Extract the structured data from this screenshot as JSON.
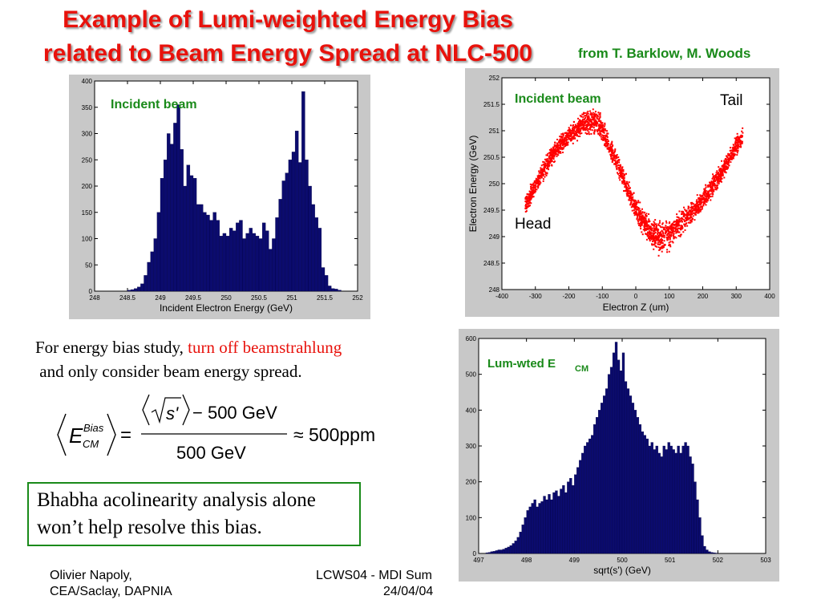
{
  "slide": {
    "title_line1": "Example of Lumi-weighted Energy Bias",
    "title_line2": "related to Beam Energy Spread at NLC-500",
    "credit": "from T. Barklow, M. Woods"
  },
  "text": {
    "line1_plain": "For energy bias study, ",
    "line1_red": "turn off beamstrahlung",
    "line2": " and only consider beam energy spread.",
    "box_line1": "Bhabha acolinearity analysis alone",
    "box_line2": "won’t help resolve this bias."
  },
  "formula": {
    "lhs_main": "E",
    "lhs_sup": "Bias",
    "lhs_sub": "CM",
    "numerator_s": "s'",
    "numerator_rest": "− 500 GeV",
    "denominator": "500 GeV",
    "result": "≈ 500ppm"
  },
  "footer": {
    "author_line1": "Olivier Napoly,",
    "author_line2": "CEA/Saclay, DAPNIA",
    "conf_line1": "LCWS04 - MDI Sum",
    "conf_line2": "24/04/04"
  },
  "chart_data": [
    {
      "type": "bar",
      "annotation": "Incident beam",
      "xlabel": "Incident Electron Energy (GeV)",
      "ylabel": "",
      "xlim": [
        248,
        252
      ],
      "ylim": [
        0,
        400
      ],
      "x_ticks": [
        "248",
        "248.5",
        "249",
        "249.5",
        "250",
        "250.5",
        "251",
        "251.5",
        "252"
      ],
      "y_ticks": [
        "0",
        "50",
        "100",
        "150",
        "200",
        "250",
        "300",
        "350",
        "400"
      ],
      "bin_start": 248.45,
      "bin_width": 0.05,
      "values": [
        0,
        2,
        3,
        5,
        8,
        14,
        30,
        55,
        75,
        100,
        150,
        215,
        250,
        300,
        280,
        320,
        355,
        270,
        200,
        240,
        220,
        215,
        165,
        165,
        150,
        145,
        135,
        150,
        135,
        105,
        110,
        105,
        120,
        115,
        130,
        135,
        100,
        110,
        120,
        110,
        105,
        100,
        130,
        115,
        80,
        100,
        140,
        175,
        210,
        225,
        250,
        265,
        305,
        245,
        380,
        250,
        200,
        165,
        140,
        120,
        45,
        30,
        10,
        5,
        4,
        2,
        0
      ]
    },
    {
      "type": "scatter",
      "annotation": "Incident beam",
      "labels": [
        "Tail",
        "Head"
      ],
      "xlabel": "Electron Z (um)",
      "ylabel": "Electron Energy (GeV)",
      "xlim": [
        -400,
        400
      ],
      "ylim": [
        248,
        252
      ],
      "x_ticks": [
        "-400",
        "-300",
        "-200",
        "-100",
        "0",
        "100",
        "200",
        "300",
        "400"
      ],
      "y_ticks": [
        "248",
        "248.5",
        "249",
        "249.5",
        "250",
        "250.5",
        "251",
        "251.5",
        "252"
      ],
      "color": "#ff0000",
      "centerline": [
        [
          -330,
          249.6
        ],
        [
          -300,
          249.95
        ],
        [
          -250,
          250.55
        ],
        [
          -200,
          250.9
        ],
        [
          -150,
          251.15
        ],
        [
          -120,
          251.18
        ],
        [
          -100,
          251.0
        ],
        [
          -50,
          250.3
        ],
        [
          0,
          249.5
        ],
        [
          50,
          249.05
        ],
        [
          80,
          248.95
        ],
        [
          100,
          249.05
        ],
        [
          150,
          249.35
        ],
        [
          200,
          249.7
        ],
        [
          250,
          250.15
        ],
        [
          300,
          250.7
        ],
        [
          320,
          250.9
        ]
      ]
    },
    {
      "type": "bar",
      "annotation_main": "Lum-wted E",
      "annotation_sub": "CM",
      "xlabel": "sqrt(s') (GeV)",
      "ylabel": "",
      "xlim": [
        497,
        503
      ],
      "ylim": [
        0,
        600
      ],
      "x_ticks": [
        "497",
        "498",
        "499",
        "500",
        "501",
        "502",
        "503"
      ],
      "y_ticks": [
        "0",
        "100",
        "200",
        "300",
        "400",
        "500",
        "600"
      ],
      "bin_start": 497.0,
      "bin_width": 0.05,
      "values": [
        0,
        0,
        0,
        2,
        3,
        5,
        6,
        8,
        10,
        10,
        12,
        15,
        18,
        22,
        28,
        35,
        45,
        60,
        80,
        100,
        120,
        130,
        140,
        150,
        130,
        140,
        145,
        160,
        150,
        165,
        150,
        170,
        175,
        160,
        180,
        190,
        170,
        200,
        210,
        190,
        220,
        240,
        260,
        280,
        300,
        310,
        320,
        330,
        360,
        380,
        400,
        420,
        440,
        460,
        500,
        520,
        560,
        590,
        540,
        510,
        560,
        480,
        460,
        440,
        420,
        400,
        380,
        360,
        340,
        330,
        320,
        300,
        310,
        290,
        300,
        280,
        270,
        300,
        290,
        310,
        300,
        290,
        280,
        300,
        280,
        300,
        310,
        300,
        270,
        250,
        200,
        150,
        100,
        50,
        20,
        10,
        5,
        3,
        2,
        1,
        0,
        0,
        0,
        0,
        0,
        0,
        0,
        0,
        0,
        0,
        0,
        0,
        0,
        0,
        0,
        0,
        0,
        0,
        0,
        0
      ]
    }
  ]
}
